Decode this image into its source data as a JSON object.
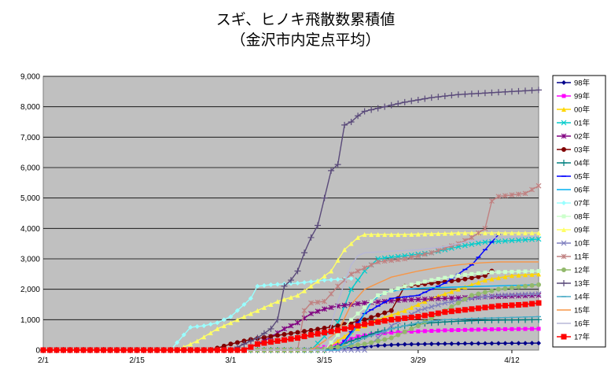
{
  "chart_data": {
    "type": "line",
    "title": "スギ、ヒノキ飛散数累積値",
    "subtitle": "（金沢市内定点平均）",
    "xlabel": "",
    "ylabel": "",
    "x_ticks": [
      "2/1",
      "2/15",
      "3/1",
      "3/15",
      "3/29",
      "4/12"
    ],
    "x_tick_days": [
      0,
      14,
      28,
      42,
      56,
      70
    ],
    "x_range": [
      0,
      74
    ],
    "ylim": [
      0,
      9000
    ],
    "y_ticks": [
      "0",
      "1,000",
      "2,000",
      "3,000",
      "4,000",
      "5,000",
      "6,000",
      "7,000",
      "8,000",
      "9,000"
    ],
    "grid": "horizontal",
    "legend_position": "right",
    "series": [
      {
        "name": "98年",
        "color": "#00008B",
        "marker": "diamond",
        "points": [
          [
            0,
            0
          ],
          [
            38,
            0
          ],
          [
            42,
            30
          ],
          [
            46,
            80
          ],
          [
            50,
            150
          ],
          [
            54,
            190
          ],
          [
            60,
            210
          ],
          [
            66,
            220
          ],
          [
            74,
            230
          ]
        ]
      },
      {
        "name": "99年",
        "color": "#FF00FF",
        "marker": "square",
        "points": [
          [
            0,
            0
          ],
          [
            40,
            0
          ],
          [
            44,
            200
          ],
          [
            47,
            450
          ],
          [
            50,
            550
          ],
          [
            54,
            600
          ],
          [
            60,
            650
          ],
          [
            66,
            680
          ],
          [
            74,
            700
          ]
        ]
      },
      {
        "name": "00年",
        "color": "#FFD700",
        "marker": "triangle",
        "points": [
          [
            0,
            0
          ],
          [
            42,
            0
          ],
          [
            46,
            600
          ],
          [
            50,
            1000
          ],
          [
            54,
            1300
          ],
          [
            58,
            1700
          ],
          [
            62,
            2000
          ],
          [
            66,
            2300
          ],
          [
            70,
            2450
          ],
          [
            74,
            2500
          ]
        ]
      },
      {
        "name": "01年",
        "color": "#00CCCC",
        "marker": "x",
        "points": [
          [
            0,
            0
          ],
          [
            40,
            0
          ],
          [
            44,
            900
          ],
          [
            46,
            2000
          ],
          [
            48,
            2600
          ],
          [
            50,
            3000
          ],
          [
            54,
            3100
          ],
          [
            58,
            3200
          ],
          [
            62,
            3400
          ],
          [
            66,
            3550
          ],
          [
            70,
            3600
          ],
          [
            74,
            3650
          ]
        ]
      },
      {
        "name": "02年",
        "color": "#800080",
        "marker": "asterisk",
        "points": [
          [
            0,
            0
          ],
          [
            30,
            0
          ],
          [
            33,
            300
          ],
          [
            36,
            700
          ],
          [
            38,
            900
          ],
          [
            40,
            1200
          ],
          [
            42,
            1350
          ],
          [
            44,
            1450
          ],
          [
            48,
            1550
          ],
          [
            54,
            1650
          ],
          [
            60,
            1700
          ],
          [
            66,
            1750
          ],
          [
            74,
            1800
          ]
        ]
      },
      {
        "name": "03年",
        "color": "#800000",
        "marker": "circle",
        "points": [
          [
            0,
            0
          ],
          [
            25,
            0
          ],
          [
            28,
            200
          ],
          [
            31,
            350
          ],
          [
            34,
            450
          ],
          [
            37,
            550
          ],
          [
            40,
            650
          ],
          [
            44,
            800
          ],
          [
            48,
            1000
          ],
          [
            52,
            1300
          ],
          [
            54,
            2100
          ],
          [
            58,
            2200
          ],
          [
            62,
            2300
          ],
          [
            66,
            2450
          ],
          [
            67,
            2600
          ]
        ]
      },
      {
        "name": "04年",
        "color": "#008080",
        "marker": "plus",
        "points": [
          [
            0,
            0
          ],
          [
            42,
            0
          ],
          [
            46,
            300
          ],
          [
            50,
            600
          ],
          [
            54,
            800
          ],
          [
            58,
            900
          ],
          [
            62,
            950
          ],
          [
            66,
            980
          ],
          [
            74,
            1000
          ]
        ]
      },
      {
        "name": "05年",
        "color": "#0000FF",
        "marker": "dash",
        "points": [
          [
            0,
            0
          ],
          [
            44,
            0
          ],
          [
            48,
            1200
          ],
          [
            52,
            1700
          ],
          [
            56,
            1800
          ],
          [
            60,
            2200
          ],
          [
            62,
            2500
          ],
          [
            64,
            2800
          ],
          [
            66,
            3300
          ],
          [
            68,
            3800
          ]
        ]
      },
      {
        "name": "06年",
        "color": "#00B0F0",
        "marker": "none",
        "points": [
          [
            0,
            0
          ],
          [
            44,
            0
          ],
          [
            47,
            800
          ],
          [
            49,
            1600
          ],
          [
            51,
            1900
          ],
          [
            54,
            2000
          ],
          [
            58,
            2050
          ],
          [
            66,
            2100
          ],
          [
            74,
            2150
          ]
        ]
      },
      {
        "name": "07年",
        "color": "#99FFFF",
        "marker": "diamond",
        "points": [
          [
            0,
            0
          ],
          [
            19,
            0
          ],
          [
            21,
            500
          ],
          [
            22,
            750
          ],
          [
            24,
            800
          ],
          [
            26,
            900
          ],
          [
            28,
            1100
          ],
          [
            29,
            1300
          ],
          [
            31,
            1700
          ],
          [
            32,
            2100
          ],
          [
            34,
            2150
          ],
          [
            38,
            2200
          ],
          [
            42,
            2300
          ],
          [
            46,
            2350
          ]
        ]
      },
      {
        "name": "08年",
        "color": "#CCFFCC",
        "marker": "square",
        "points": [
          [
            0,
            0
          ],
          [
            42,
            0
          ],
          [
            46,
            1000
          ],
          [
            50,
            1800
          ],
          [
            54,
            2100
          ],
          [
            58,
            2300
          ],
          [
            62,
            2450
          ],
          [
            66,
            2550
          ],
          [
            74,
            2600
          ]
        ]
      },
      {
        "name": "09年",
        "color": "#FFFF66",
        "marker": "triangle",
        "points": [
          [
            0,
            0
          ],
          [
            20,
            0
          ],
          [
            23,
            300
          ],
          [
            26,
            700
          ],
          [
            28,
            900
          ],
          [
            30,
            1100
          ],
          [
            32,
            1300
          ],
          [
            35,
            1600
          ],
          [
            38,
            1800
          ],
          [
            40,
            2100
          ],
          [
            43,
            2600
          ],
          [
            45,
            3300
          ],
          [
            47,
            3700
          ],
          [
            48,
            3800
          ],
          [
            54,
            3800
          ],
          [
            62,
            3850
          ],
          [
            74,
            3850
          ]
        ]
      },
      {
        "name": "10年",
        "color": "#7F7FBF",
        "marker": "x",
        "points": [
          [
            0,
            0
          ],
          [
            48,
            0
          ],
          [
            52,
            800
          ],
          [
            56,
            1300
          ],
          [
            60,
            1550
          ],
          [
            64,
            1700
          ],
          [
            68,
            1800
          ],
          [
            74,
            1850
          ]
        ]
      },
      {
        "name": "11年",
        "color": "#C08080",
        "marker": "asterisk",
        "points": [
          [
            0,
            0
          ],
          [
            38,
            0
          ],
          [
            39,
            1300
          ],
          [
            40,
            1550
          ],
          [
            42,
            1600
          ],
          [
            44,
            2100
          ],
          [
            46,
            2500
          ],
          [
            48,
            2700
          ],
          [
            50,
            2900
          ],
          [
            54,
            3000
          ],
          [
            58,
            3200
          ],
          [
            62,
            3500
          ],
          [
            64,
            3700
          ],
          [
            66,
            4000
          ],
          [
            67,
            4900
          ],
          [
            68,
            5050
          ],
          [
            72,
            5150
          ],
          [
            74,
            5400
          ]
        ]
      },
      {
        "name": "12年",
        "color": "#92B96C",
        "marker": "circle",
        "points": [
          [
            0,
            0
          ],
          [
            40,
            0
          ],
          [
            44,
            100
          ],
          [
            48,
            200
          ],
          [
            52,
            400
          ],
          [
            56,
            800
          ],
          [
            60,
            1300
          ],
          [
            64,
            1800
          ],
          [
            68,
            2000
          ],
          [
            74,
            2150
          ]
        ]
      },
      {
        "name": "13年",
        "color": "#5A4A7A",
        "marker": "plus",
        "points": [
          [
            0,
            0
          ],
          [
            28,
            0
          ],
          [
            30,
            200
          ],
          [
            32,
            400
          ],
          [
            34,
            700
          ],
          [
            35,
            1000
          ],
          [
            36,
            2100
          ],
          [
            37,
            2300
          ],
          [
            38,
            2600
          ],
          [
            39,
            3200
          ],
          [
            40,
            3700
          ],
          [
            41,
            4100
          ],
          [
            42,
            5000
          ],
          [
            43,
            5900
          ],
          [
            44,
            6100
          ],
          [
            45,
            7400
          ],
          [
            46,
            7500
          ],
          [
            47,
            7700
          ],
          [
            48,
            7850
          ],
          [
            50,
            7950
          ],
          [
            54,
            8150
          ],
          [
            58,
            8300
          ],
          [
            62,
            8400
          ],
          [
            66,
            8450
          ],
          [
            70,
            8500
          ],
          [
            74,
            8550
          ]
        ]
      },
      {
        "name": "14年",
        "color": "#4BACC6",
        "marker": "dash",
        "points": [
          [
            0,
            0
          ],
          [
            44,
            0
          ],
          [
            48,
            400
          ],
          [
            52,
            700
          ],
          [
            56,
            900
          ],
          [
            60,
            1000
          ],
          [
            66,
            1050
          ],
          [
            74,
            1100
          ]
        ]
      },
      {
        "name": "15年",
        "color": "#F79646",
        "marker": "none",
        "points": [
          [
            0,
            0
          ],
          [
            40,
            0
          ],
          [
            44,
            600
          ],
          [
            46,
            1500
          ],
          [
            48,
            2000
          ],
          [
            52,
            2400
          ],
          [
            56,
            2600
          ],
          [
            60,
            2750
          ],
          [
            64,
            2850
          ],
          [
            68,
            2900
          ],
          [
            74,
            2900
          ]
        ]
      },
      {
        "name": "16年",
        "color": "#B7B7D7",
        "marker": "none",
        "points": [
          [
            0,
            0
          ],
          [
            42,
            0
          ],
          [
            44,
            1600
          ],
          [
            46,
            2800
          ],
          [
            47,
            3100
          ],
          [
            48,
            3200
          ],
          [
            52,
            3250
          ],
          [
            56,
            3300
          ],
          [
            60,
            3400
          ],
          [
            64,
            3600
          ],
          [
            68,
            3700
          ],
          [
            74,
            3750
          ]
        ]
      },
      {
        "name": "17年",
        "color": "#FF0000",
        "marker": "square-big",
        "points": [
          [
            0,
            0
          ],
          [
            30,
            0
          ],
          [
            32,
            200
          ],
          [
            35,
            300
          ],
          [
            38,
            400
          ],
          [
            40,
            500
          ],
          [
            44,
            650
          ],
          [
            48,
            850
          ],
          [
            52,
            1000
          ],
          [
            56,
            1100
          ],
          [
            60,
            1250
          ],
          [
            64,
            1350
          ],
          [
            68,
            1450
          ],
          [
            72,
            1500
          ],
          [
            74,
            1550
          ]
        ]
      }
    ]
  }
}
